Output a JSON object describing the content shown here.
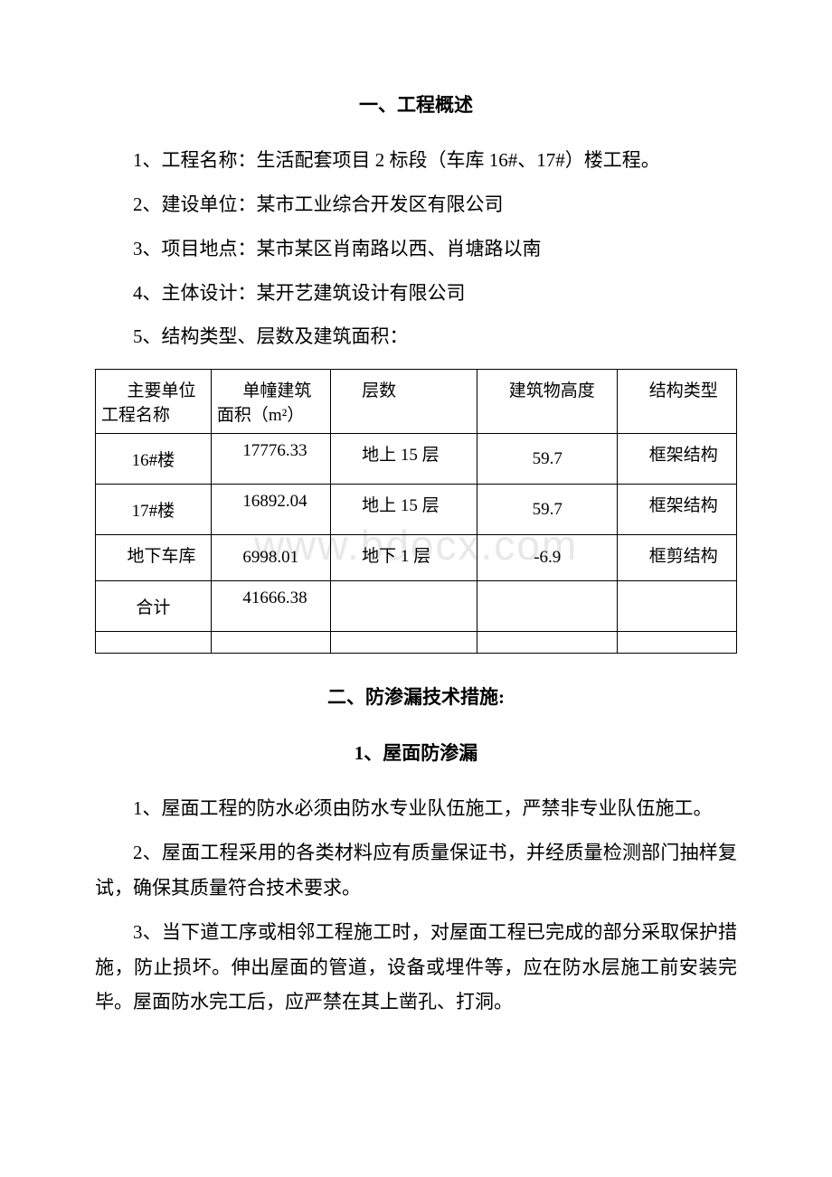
{
  "section1": {
    "title": "一、工程概述",
    "items": [
      "1、工程名称：生活配套项目 2 标段（车库 16#、17#）楼工程。",
      "2、建设单位：某市工业综合开发区有限公司",
      "3、项目地点：某市某区肖南路以西、肖塘路以南",
      "4、主体设计：某开艺建筑设计有限公司",
      "5、结构类型、层数及建筑面积："
    ]
  },
  "table": {
    "headers": [
      "主要单位工程名称",
      "单幢建筑面积（m²）",
      "层数",
      "建筑物高度",
      "结构类型"
    ],
    "rows": [
      [
        "16#楼",
        "17776.33",
        "地上 15 层",
        "59.7",
        "框架结构"
      ],
      [
        "17#楼",
        "16892.04",
        "地上 15 层",
        "59.7",
        "框架结构"
      ],
      [
        "地下车库",
        "6998.01",
        "地下 1 层",
        "-6.9",
        "框剪结构"
      ],
      [
        "合计",
        "41666.38",
        "",
        "",
        ""
      ]
    ]
  },
  "section2": {
    "title": "二、防渗漏技术措施:",
    "sub1": {
      "title": "1、屋面防渗漏",
      "paras": [
        "1、屋面工程的防水必须由防水专业队伍施工，严禁非专业队伍施工。",
        "2、屋面工程采用的各类材料应有质量保证书，并经质量检测部门抽样复试，确保其质量符合技术要求。",
        "3、当下道工序或相邻工程施工时，对屋面工程已完成的部分采取保护措施，防止损坏。伸出屋面的管道，设备或埋件等，应在防水层施工前安装完毕。屋面防水完工后，应严禁在其上凿孔、打洞。"
      ]
    }
  },
  "watermark": "www.bdocx.com"
}
